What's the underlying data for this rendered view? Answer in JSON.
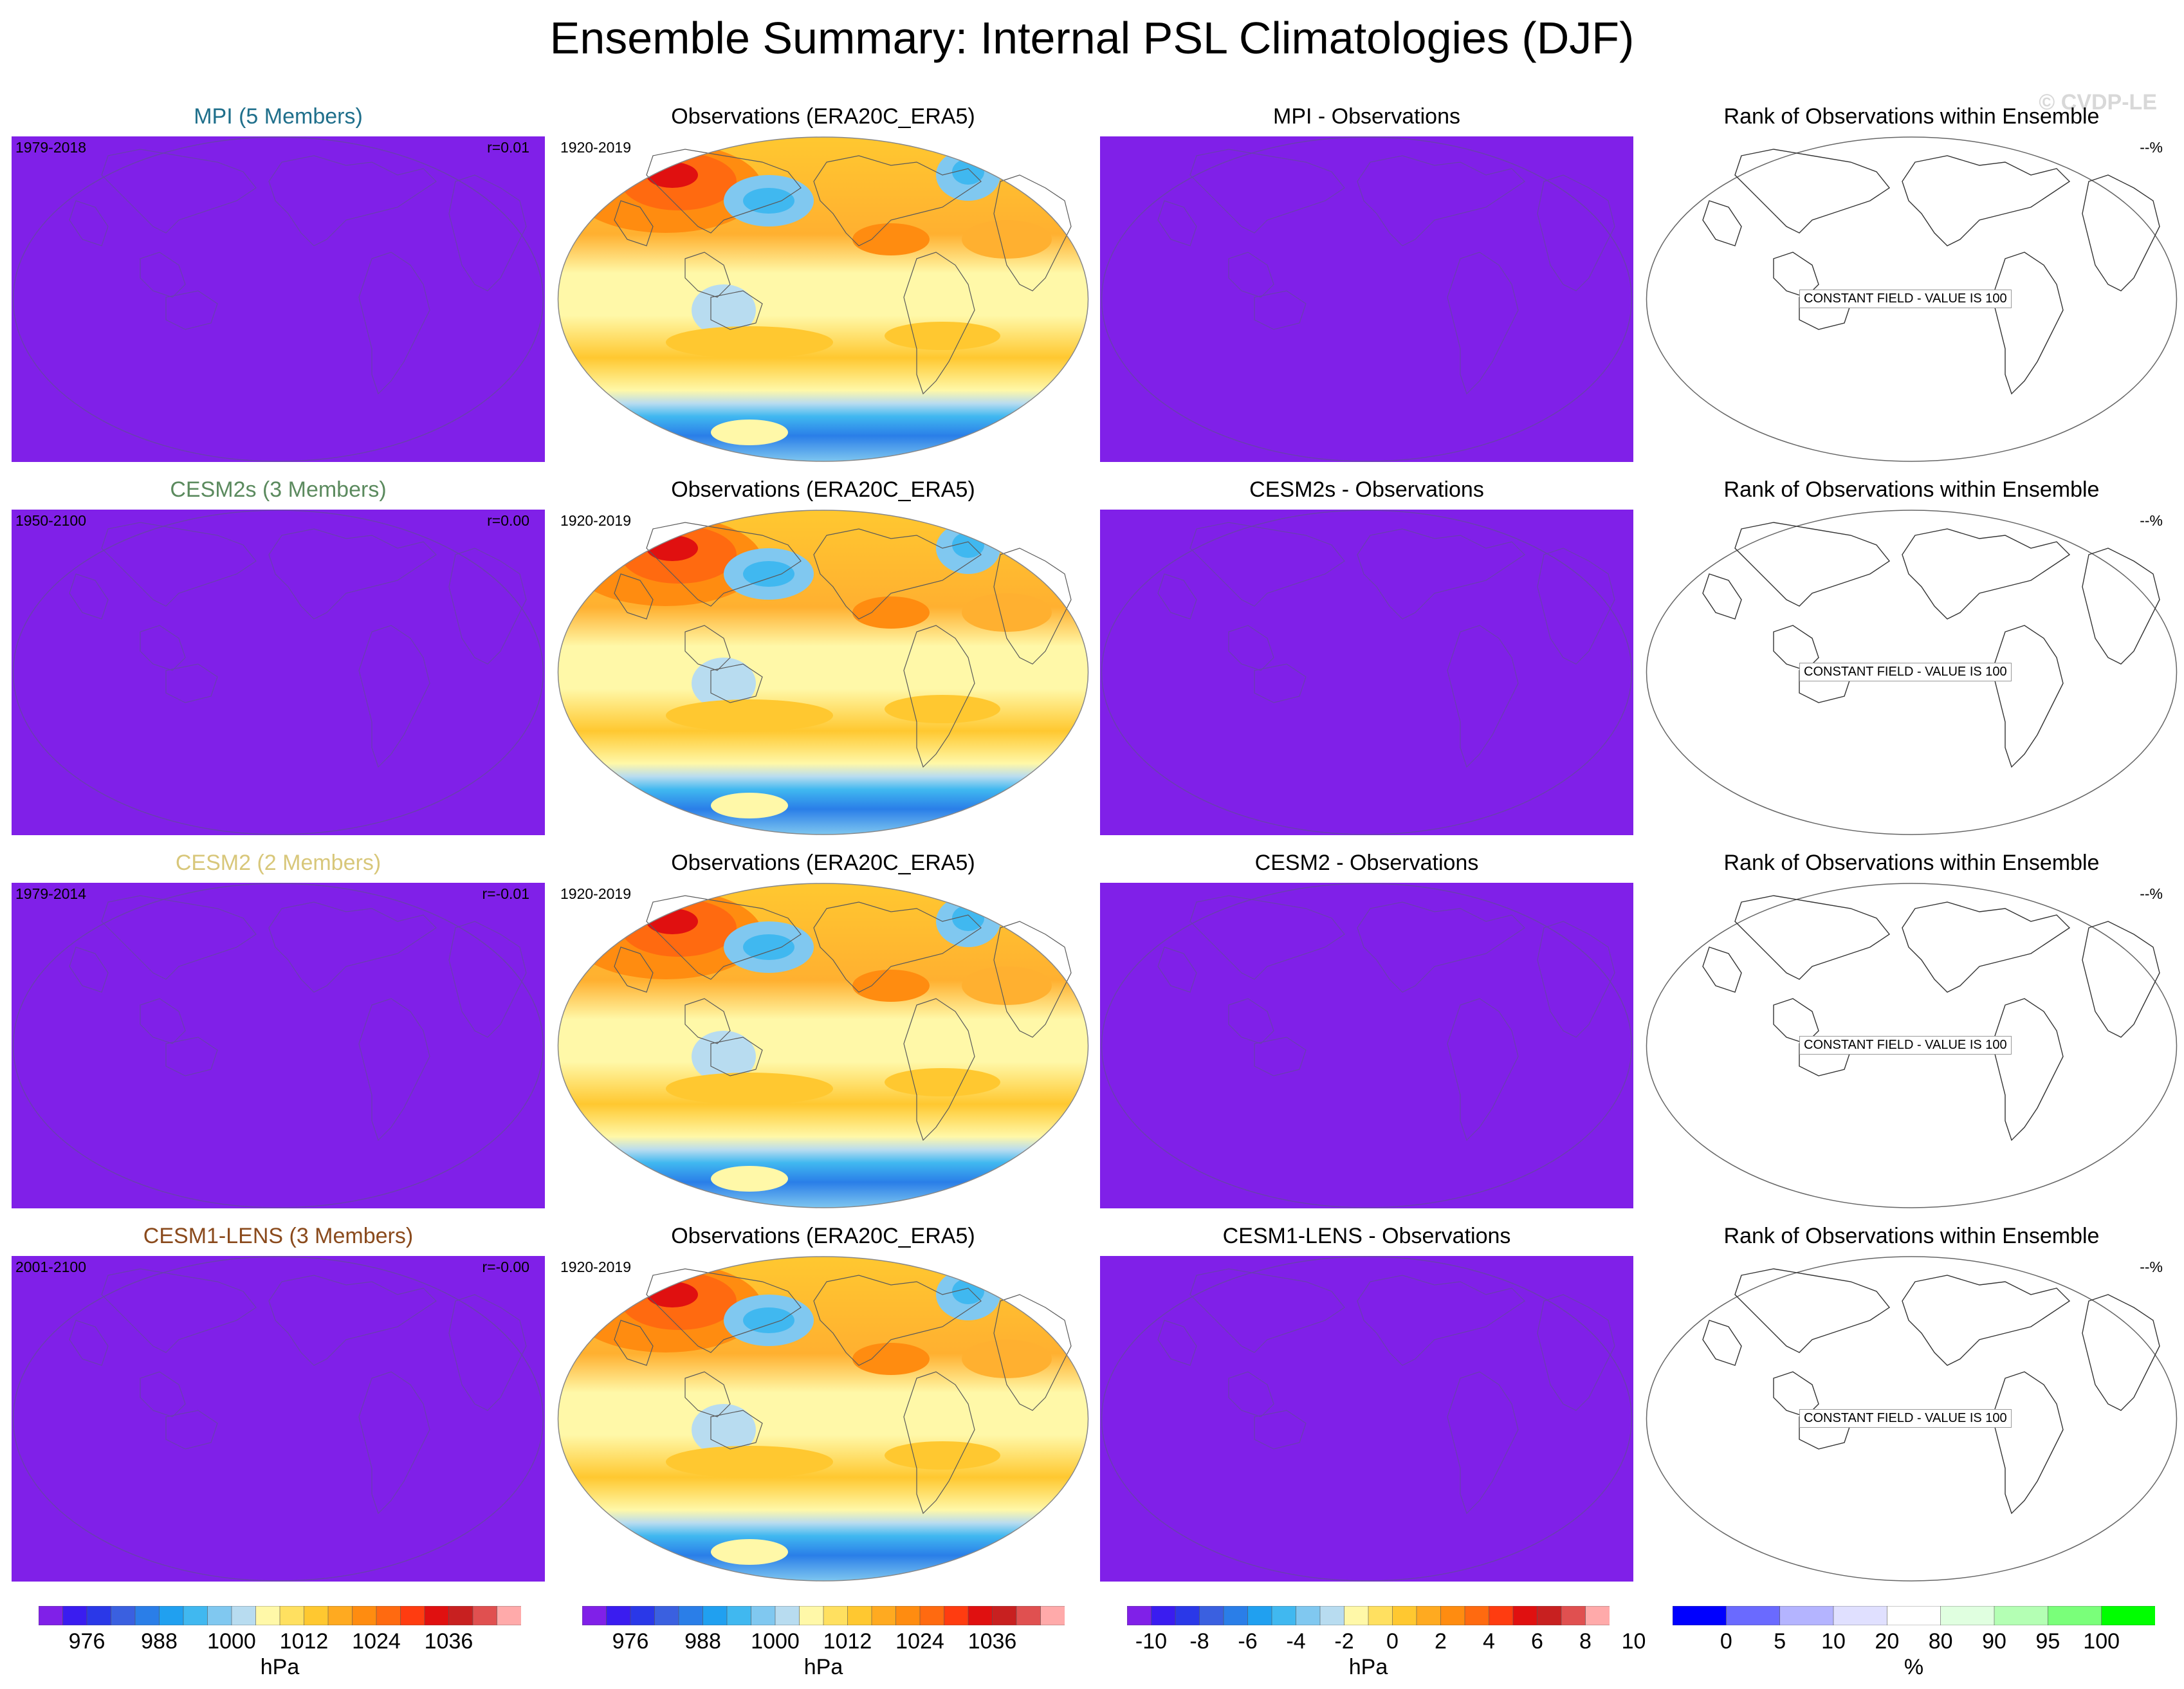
{
  "title": "Ensemble Summary: Internal PSL Climatologies (DJF)",
  "watermark": "© CVDP-LE",
  "rows": [
    {
      "model_title": "MPI (5 Members)",
      "model_color": "#1f6f8b",
      "model_years": "1979-2018",
      "model_r": "r=0.01",
      "obs_title": "Observations (ERA20C_ERA5)",
      "obs_years": "1920-2019",
      "diff_title": "MPI - Observations",
      "rank_title": "Rank of Observations within Ensemble",
      "rank_pct": "--%",
      "rank_label": "CONSTANT FIELD - VALUE IS 100"
    },
    {
      "model_title": "CESM2s (3 Members)",
      "model_color": "#5b8a5e",
      "model_years": "1950-2100",
      "model_r": "r=0.00",
      "obs_title": "Observations (ERA20C_ERA5)",
      "obs_years": "1920-2019",
      "diff_title": "CESM2s - Observations",
      "rank_title": "Rank of Observations within Ensemble",
      "rank_pct": "--%",
      "rank_label": "CONSTANT FIELD - VALUE IS 100"
    },
    {
      "model_title": "CESM2 (2 Members)",
      "model_color": "#d8c77a",
      "model_years": "1979-2014",
      "model_r": "r=-0.01",
      "obs_title": "Observations (ERA20C_ERA5)",
      "obs_years": "1920-2019",
      "diff_title": "CESM2 - Observations",
      "rank_title": "Rank of Observations within Ensemble",
      "rank_pct": "--%",
      "rank_label": "CONSTANT FIELD - VALUE IS 100"
    },
    {
      "model_title": "CESM1-LENS (3 Members)",
      "model_color": "#8a4a1c",
      "model_years": "2001-2100",
      "model_r": "r=-0.00",
      "obs_title": "Observations (ERA20C_ERA5)",
      "obs_years": "1920-2019",
      "diff_title": "CESM1-LENS - Observations",
      "rank_title": "Rank of Observations within Ensemble",
      "rank_pct": "--%",
      "rank_label": "CONSTANT FIELD - VALUE IS 100"
    }
  ],
  "colorbars": [
    {
      "ticks": [
        "976",
        "988",
        "1000",
        "1012",
        "1024",
        "1036"
      ],
      "unit": "hPa",
      "colors": [
        "#8020e8",
        "#3a1cf0",
        "#2a38e8",
        "#3a60e0",
        "#2a7ee8",
        "#20a0f0",
        "#40b8f0",
        "#80c8f0",
        "#b8dcf0",
        "#fff8a8",
        "#ffe060",
        "#ffc830",
        "#ffaa20",
        "#ff8c10",
        "#ff6a10",
        "#ff3c10",
        "#e01010",
        "#c82020",
        "#e05050",
        "#ffaaaa"
      ]
    },
    {
      "ticks": [
        "976",
        "988",
        "1000",
        "1012",
        "1024",
        "1036"
      ],
      "unit": "hPa",
      "colors": [
        "#8020e8",
        "#3a1cf0",
        "#2a38e8",
        "#3a60e0",
        "#2a7ee8",
        "#20a0f0",
        "#40b8f0",
        "#80c8f0",
        "#b8dcf0",
        "#fff8a8",
        "#ffe060",
        "#ffc830",
        "#ffaa20",
        "#ff8c10",
        "#ff6a10",
        "#ff3c10",
        "#e01010",
        "#c82020",
        "#e05050",
        "#ffaaaa"
      ]
    },
    {
      "ticks": [
        "-10",
        "-8",
        "-6",
        "-4",
        "-2",
        "0",
        "2",
        "4",
        "6",
        "8",
        "10"
      ],
      "unit": "hPa",
      "colors": [
        "#8020e8",
        "#3a1cf0",
        "#2a38e8",
        "#3a60e0",
        "#2a7ee8",
        "#20a0f0",
        "#40b8f0",
        "#80c8f0",
        "#b8dcf0",
        "#fff8a8",
        "#ffe060",
        "#ffc830",
        "#ffaa20",
        "#ff8c10",
        "#ff6a10",
        "#ff3c10",
        "#e01010",
        "#c82020",
        "#e05050",
        "#ffaaaa"
      ]
    },
    {
      "ticks": [
        "0",
        "5",
        "10",
        "20",
        "80",
        "90",
        "95",
        "100"
      ],
      "unit": "%",
      "colors": [
        "#0000ff",
        "#6a6aff",
        "#b4b4ff",
        "#e0e0ff",
        "#ffffff",
        "#e0ffe0",
        "#b4ffb4",
        "#7aff7a",
        "#00ff00"
      ]
    }
  ],
  "colors": {
    "model_fill": "#8020e8",
    "diff_fill": "#8020e8",
    "coast": "#6a3fb0"
  }
}
